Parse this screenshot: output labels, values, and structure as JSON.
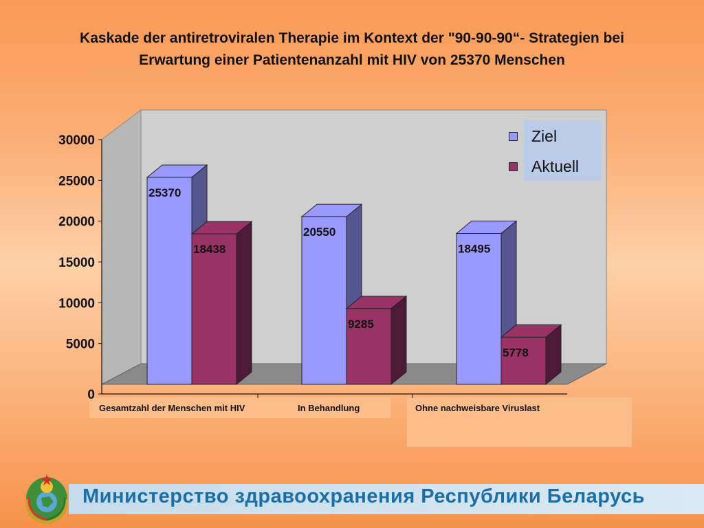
{
  "title_line1": "Kaskade der antiretroviralen Therapie im Kontext der \"90-90-90“- Strategien bei",
  "title_line2": "Erwartung einer Patientenanzahl mit HIV von 25370 Menschen",
  "footer_text": "Министерство здравоохранения Республики Беларусь",
  "colors": {
    "ziel": "#9999ff",
    "ziel_side": "#55558f",
    "aktuell": "#993366",
    "aktuell_side": "#4d1a38"
  },
  "chart_data": {
    "type": "bar",
    "categories": [
      "Gesamtzahl der Menschen mit HIV",
      "In Behandlung",
      "Ohne nachweisbare Viruslast"
    ],
    "series": [
      {
        "name": "Ziel",
        "values": [
          25370,
          20550,
          18495
        ]
      },
      {
        "name": "Aktuell",
        "values": [
          18438,
          9285,
          5778
        ]
      }
    ],
    "yticks": [
      "0",
      "5000",
      "10000",
      "15000",
      "20000",
      "25000",
      "30000"
    ],
    "ylim": [
      0,
      30000
    ],
    "legend": "top-right",
    "grid": false
  }
}
